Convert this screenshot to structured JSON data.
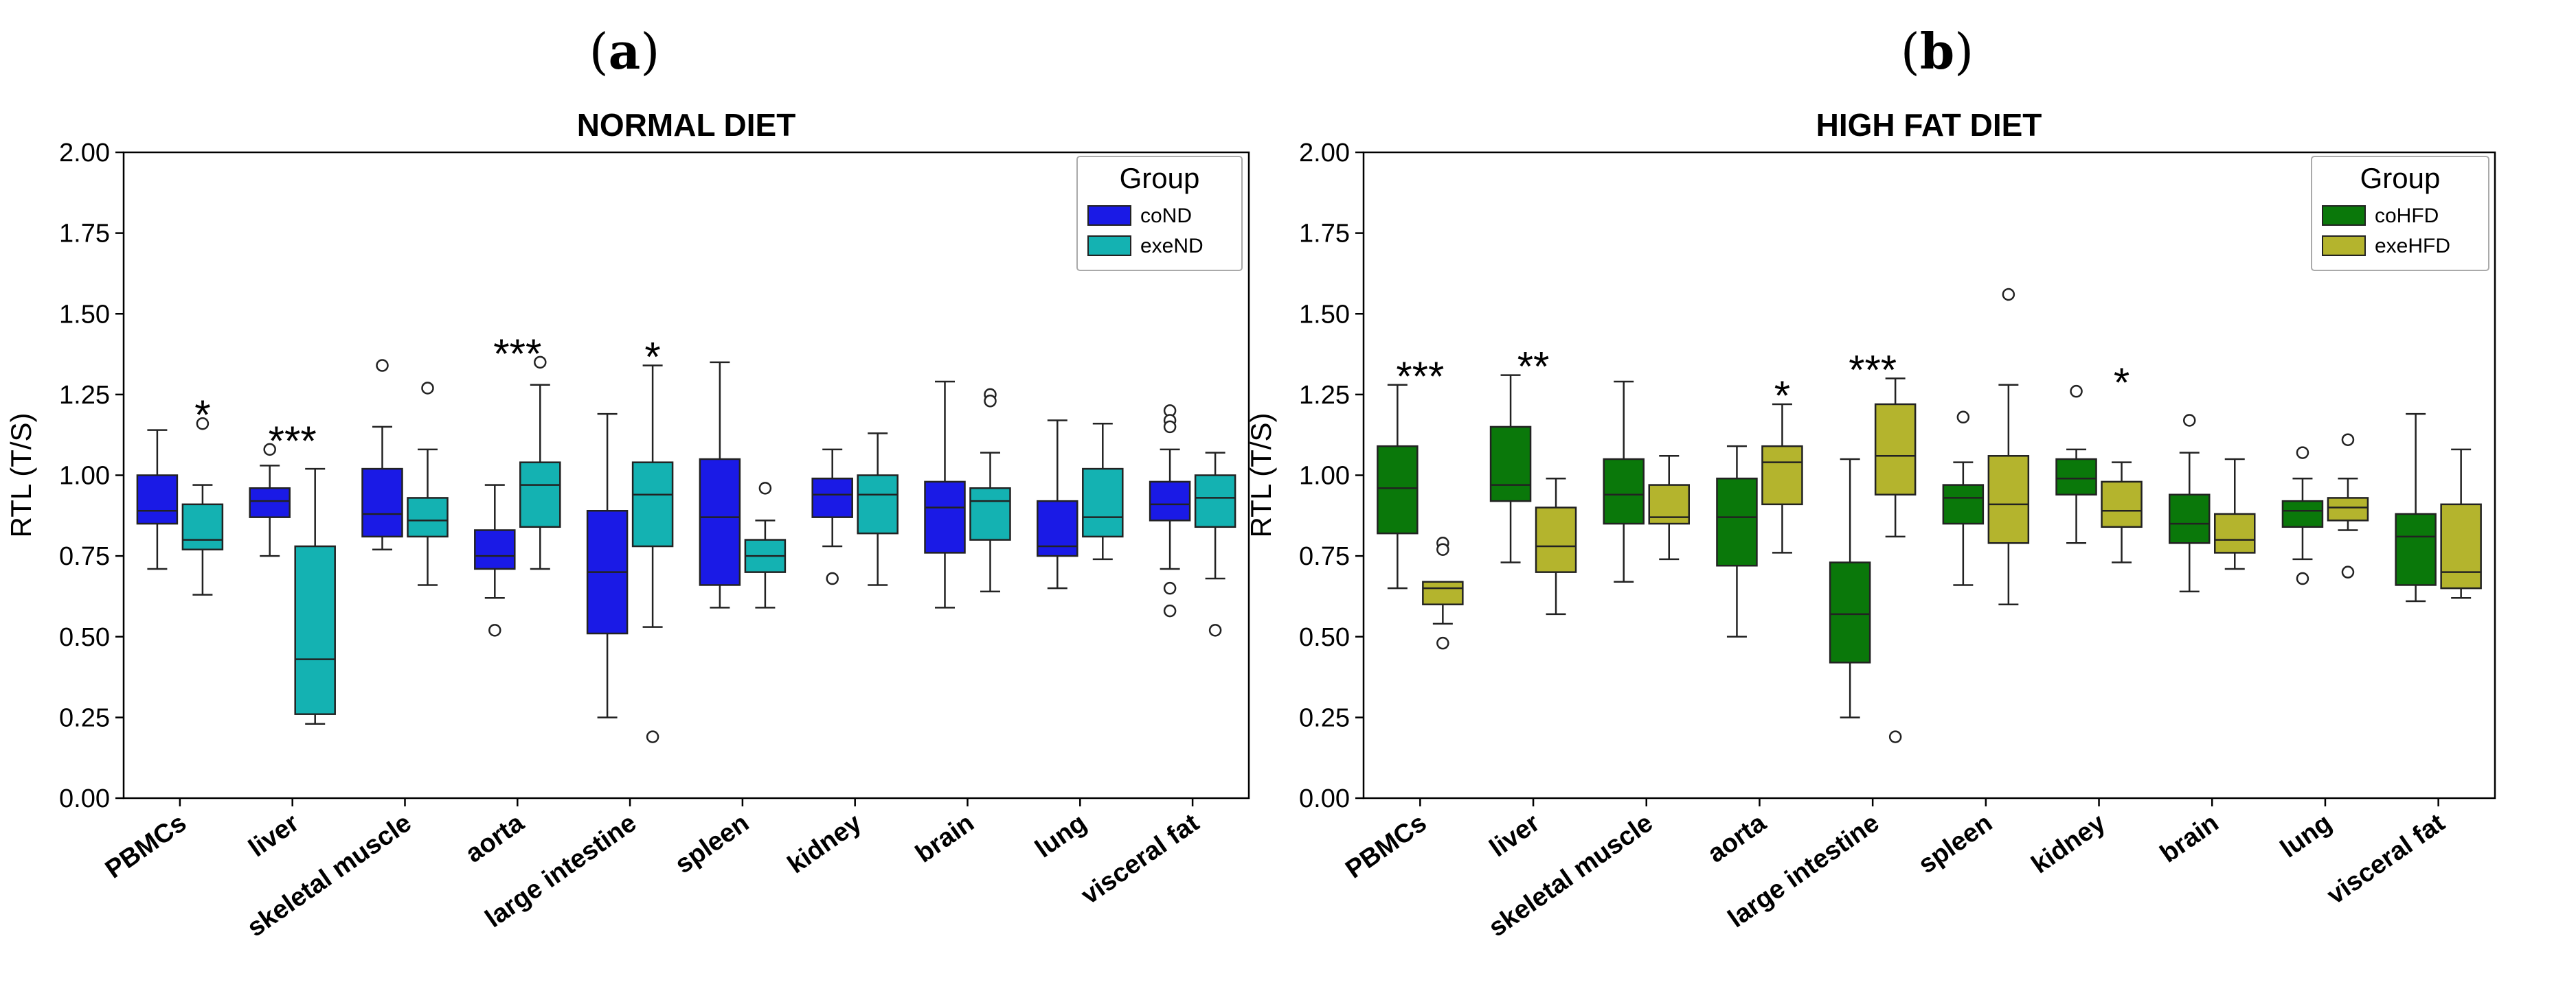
{
  "figure": {
    "panels": [
      {
        "letter": "(a)",
        "bold_char": "a"
      },
      {
        "letter": "(b)",
        "bold_char": "b"
      }
    ]
  },
  "chart_data": [
    {
      "type": "box",
      "panel": "(a)",
      "title": "NORMAL DIET",
      "ylabel": "RTL (T/S)",
      "xlabel": "",
      "ylim": [
        0,
        2
      ],
      "yticks": [
        "0.00",
        "0.25",
        "0.50",
        "0.75",
        "1.00",
        "1.25",
        "1.50",
        "1.75",
        "2.00"
      ],
      "ytick_values": [
        0,
        0.25,
        0.5,
        0.75,
        1.0,
        1.25,
        1.5,
        1.75,
        2.0
      ],
      "categories": [
        "PBMCs",
        "liver",
        "skeletal muscle",
        "aorta",
        "large intestine",
        "spleen",
        "kidney",
        "brain",
        "lung",
        "visceral fat"
      ],
      "legend": {
        "title": "Group",
        "position": "top-right"
      },
      "significance": [
        "*",
        "***",
        "",
        "***",
        "*",
        "",
        "",
        "",
        "",
        ""
      ],
      "series": [
        {
          "name": "coND",
          "color": "#1a1ae6",
          "boxes": [
            {
              "whislo": 0.71,
              "q1": 0.85,
              "med": 0.89,
              "q3": 1.0,
              "whishi": 1.14,
              "fliers": []
            },
            {
              "whislo": 0.75,
              "q1": 0.87,
              "med": 0.92,
              "q3": 0.96,
              "whishi": 1.03,
              "fliers": [
                1.08
              ]
            },
            {
              "whislo": 0.77,
              "q1": 0.81,
              "med": 0.88,
              "q3": 1.02,
              "whishi": 1.15,
              "fliers": [
                1.34
              ]
            },
            {
              "whislo": 0.62,
              "q1": 0.71,
              "med": 0.75,
              "q3": 0.83,
              "whishi": 0.97,
              "fliers": [
                0.52
              ]
            },
            {
              "whislo": 0.25,
              "q1": 0.51,
              "med": 0.7,
              "q3": 0.89,
              "whishi": 1.19,
              "fliers": []
            },
            {
              "whislo": 0.59,
              "q1": 0.66,
              "med": 0.87,
              "q3": 1.05,
              "whishi": 1.35,
              "fliers": []
            },
            {
              "whislo": 0.78,
              "q1": 0.87,
              "med": 0.94,
              "q3": 0.99,
              "whishi": 1.08,
              "fliers": [
                0.68
              ]
            },
            {
              "whislo": 0.59,
              "q1": 0.76,
              "med": 0.9,
              "q3": 0.98,
              "whishi": 1.29,
              "fliers": []
            },
            {
              "whislo": 0.65,
              "q1": 0.75,
              "med": 0.78,
              "q3": 0.92,
              "whishi": 1.17,
              "fliers": []
            },
            {
              "whislo": 0.71,
              "q1": 0.86,
              "med": 0.91,
              "q3": 0.98,
              "whishi": 1.08,
              "fliers": [
                1.2,
                1.17,
                1.15,
                0.65,
                0.58
              ]
            }
          ]
        },
        {
          "name": "exeND",
          "color": "#14b2b2",
          "boxes": [
            {
              "whislo": 0.63,
              "q1": 0.77,
              "med": 0.8,
              "q3": 0.91,
              "whishi": 0.97,
              "fliers": [
                1.16
              ]
            },
            {
              "whislo": 0.23,
              "q1": 0.26,
              "med": 0.43,
              "q3": 0.78,
              "whishi": 1.02,
              "fliers": []
            },
            {
              "whislo": 0.66,
              "q1": 0.81,
              "med": 0.86,
              "q3": 0.93,
              "whishi": 1.08,
              "fliers": [
                1.27
              ]
            },
            {
              "whislo": 0.71,
              "q1": 0.84,
              "med": 0.97,
              "q3": 1.04,
              "whishi": 1.28,
              "fliers": [
                1.35
              ]
            },
            {
              "whislo": 0.53,
              "q1": 0.78,
              "med": 0.94,
              "q3": 1.04,
              "whishi": 1.34,
              "fliers": [
                0.19
              ]
            },
            {
              "whislo": 0.59,
              "q1": 0.7,
              "med": 0.75,
              "q3": 0.8,
              "whishi": 0.86,
              "fliers": [
                0.96
              ]
            },
            {
              "whislo": 0.66,
              "q1": 0.82,
              "med": 0.94,
              "q3": 1.0,
              "whishi": 1.13,
              "fliers": []
            },
            {
              "whislo": 0.64,
              "q1": 0.8,
              "med": 0.92,
              "q3": 0.96,
              "whishi": 1.07,
              "fliers": [
                1.25,
                1.23
              ]
            },
            {
              "whislo": 0.74,
              "q1": 0.81,
              "med": 0.87,
              "q3": 1.02,
              "whishi": 1.16,
              "fliers": []
            },
            {
              "whislo": 0.68,
              "q1": 0.84,
              "med": 0.93,
              "q3": 1.0,
              "whishi": 1.07,
              "fliers": [
                0.52
              ]
            }
          ]
        }
      ]
    },
    {
      "type": "box",
      "panel": "(b)",
      "title": "HIGH FAT DIET",
      "ylabel": "RTL (T/S)",
      "xlabel": "",
      "ylim": [
        0,
        2
      ],
      "yticks": [
        "0.00",
        "0.25",
        "0.50",
        "0.75",
        "1.00",
        "1.25",
        "1.50",
        "1.75",
        "2.00"
      ],
      "ytick_values": [
        0,
        0.25,
        0.5,
        0.75,
        1.0,
        1.25,
        1.5,
        1.75,
        2.0
      ],
      "categories": [
        "PBMCs",
        "liver",
        "skeletal muscle",
        "aorta",
        "large intestine",
        "spleen",
        "kidney",
        "brain",
        "lung",
        "visceral fat"
      ],
      "legend": {
        "title": "Group",
        "position": "top-right"
      },
      "significance": [
        "***",
        "**",
        "",
        "*",
        "***",
        "",
        "*",
        "",
        "",
        ""
      ],
      "series": [
        {
          "name": "coHFD",
          "color": "#0a780a",
          "boxes": [
            {
              "whislo": 0.65,
              "q1": 0.82,
              "med": 0.96,
              "q3": 1.09,
              "whishi": 1.28,
              "fliers": []
            },
            {
              "whislo": 0.73,
              "q1": 0.92,
              "med": 0.97,
              "q3": 1.15,
              "whishi": 1.31,
              "fliers": []
            },
            {
              "whislo": 0.67,
              "q1": 0.85,
              "med": 0.94,
              "q3": 1.05,
              "whishi": 1.29,
              "fliers": []
            },
            {
              "whislo": 0.5,
              "q1": 0.72,
              "med": 0.87,
              "q3": 0.99,
              "whishi": 1.09,
              "fliers": []
            },
            {
              "whislo": 0.25,
              "q1": 0.42,
              "med": 0.57,
              "q3": 0.73,
              "whishi": 1.05,
              "fliers": []
            },
            {
              "whislo": 0.66,
              "q1": 0.85,
              "med": 0.93,
              "q3": 0.97,
              "whishi": 1.04,
              "fliers": [
                1.18
              ]
            },
            {
              "whislo": 0.79,
              "q1": 0.94,
              "med": 0.99,
              "q3": 1.05,
              "whishi": 1.08,
              "fliers": [
                1.26
              ]
            },
            {
              "whislo": 0.64,
              "q1": 0.79,
              "med": 0.85,
              "q3": 0.94,
              "whishi": 1.07,
              "fliers": [
                1.17
              ]
            },
            {
              "whislo": 0.74,
              "q1": 0.84,
              "med": 0.89,
              "q3": 0.92,
              "whishi": 0.99,
              "fliers": [
                1.07,
                0.68
              ]
            },
            {
              "whislo": 0.61,
              "q1": 0.66,
              "med": 0.81,
              "q3": 0.88,
              "whishi": 1.19,
              "fliers": []
            }
          ]
        },
        {
          "name": "exeHFD",
          "color": "#b4b42d",
          "boxes": [
            {
              "whislo": 0.54,
              "q1": 0.6,
              "med": 0.65,
              "q3": 0.67,
              "whishi": 0.67,
              "fliers": [
                0.79,
                0.77,
                0.48
              ]
            },
            {
              "whislo": 0.57,
              "q1": 0.7,
              "med": 0.78,
              "q3": 0.9,
              "whishi": 0.99,
              "fliers": []
            },
            {
              "whislo": 0.74,
              "q1": 0.85,
              "med": 0.87,
              "q3": 0.97,
              "whishi": 1.06,
              "fliers": []
            },
            {
              "whislo": 0.76,
              "q1": 0.91,
              "med": 1.04,
              "q3": 1.09,
              "whishi": 1.22,
              "fliers": []
            },
            {
              "whislo": 0.81,
              "q1": 0.94,
              "med": 1.06,
              "q3": 1.22,
              "whishi": 1.3,
              "fliers": [
                0.19
              ]
            },
            {
              "whislo": 0.6,
              "q1": 0.79,
              "med": 0.91,
              "q3": 1.06,
              "whishi": 1.28,
              "fliers": [
                1.56
              ]
            },
            {
              "whislo": 0.73,
              "q1": 0.84,
              "med": 0.89,
              "q3": 0.98,
              "whishi": 1.04,
              "fliers": []
            },
            {
              "whislo": 0.71,
              "q1": 0.76,
              "med": 0.8,
              "q3": 0.88,
              "whishi": 1.05,
              "fliers": []
            },
            {
              "whislo": 0.83,
              "q1": 0.86,
              "med": 0.9,
              "q3": 0.93,
              "whishi": 0.99,
              "fliers": [
                1.11,
                0.7
              ]
            },
            {
              "whislo": 0.62,
              "q1": 0.65,
              "med": 0.7,
              "q3": 0.91,
              "whishi": 1.08,
              "fliers": []
            }
          ]
        }
      ]
    }
  ]
}
